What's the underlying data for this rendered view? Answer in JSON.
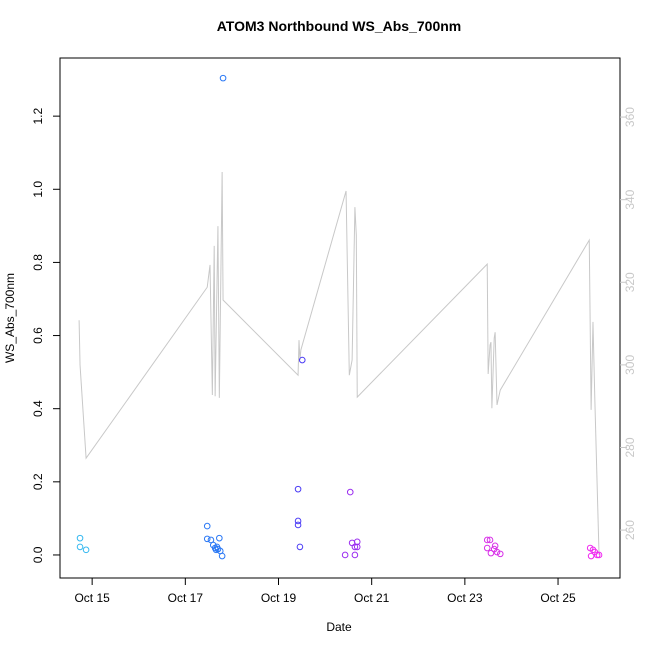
{
  "chart_data": {
    "type": "scatter",
    "title": "ATOM3 Northbound WS_Abs_700nm",
    "x_label": "Date",
    "y_label": "WS_Abs_700nm",
    "xlim": [
      14.31,
      26.33
    ],
    "ylim": [
      -0.063,
      1.359
    ],
    "y2lim": [
      248.4,
      374.3
    ],
    "xticks": [
      {
        "value": 15,
        "label": "Oct 15"
      },
      {
        "value": 17,
        "label": "Oct 17"
      },
      {
        "value": 19,
        "label": "Oct 19"
      },
      {
        "value": 21,
        "label": "Oct 21"
      },
      {
        "value": 23,
        "label": "Oct 23"
      },
      {
        "value": 25,
        "label": "Oct 25"
      }
    ],
    "yticks": [
      {
        "value": 0,
        "label": "0.0"
      },
      0.2,
      0.4,
      0.6,
      0.8,
      {
        "value": 1,
        "label": "1.0"
      },
      1.2
    ],
    "y2ticks": [
      260,
      280,
      300,
      320,
      340,
      360
    ],
    "series": [
      {
        "type": "line",
        "axis": "y2",
        "color": "#c8c8c8",
        "x": [
          14.72,
          14.74,
          14.87,
          17.47,
          17.53,
          17.58,
          17.62,
          17.64,
          17.7,
          17.73,
          17.79,
          17.81,
          19.42,
          19.44,
          19.46,
          19.48,
          20.45,
          20.52,
          20.58,
          20.64,
          20.67,
          20.69,
          23.48,
          23.5,
          23.54,
          23.56,
          23.58,
          23.63,
          23.65,
          23.69,
          23.76,
          25.67,
          25.71,
          25.75,
          25.79,
          25.88
        ],
        "values": [
          310.8,
          300.0,
          277.4,
          318.8,
          324.2,
          292.7,
          328.8,
          292.4,
          333.6,
          292.0,
          346.7,
          315.7,
          297.5,
          306.0,
          301.2,
          303.6,
          342.1,
          297.5,
          301.2,
          338.2,
          331.4,
          292.2,
          324.4,
          297.8,
          304.8,
          305.5,
          289.5,
          306.5,
          307.9,
          290.3,
          293.9,
          330.2,
          289.1,
          310.4,
          291.5,
          254.0
        ]
      },
      {
        "type": "scatter",
        "color": "#35b8f0",
        "x": [
          14.74,
          14.74,
          14.87
        ],
        "values": [
          0.046,
          0.022,
          0.014
        ]
      },
      {
        "type": "scatter",
        "color": "#2a78f5",
        "x": [
          17.47,
          17.47,
          17.55,
          17.6,
          17.64,
          17.66,
          17.68,
          17.7,
          17.73,
          17.75,
          17.79,
          17.81
        ],
        "values": [
          0.079,
          0.044,
          0.041,
          0.027,
          0.019,
          0.014,
          0.022,
          0.016,
          0.046,
          0.011,
          -0.003,
          1.304
        ]
      },
      {
        "type": "scatter",
        "color": "#4b3cf5",
        "x": [
          19.42,
          19.42,
          19.42,
          19.46,
          19.51
        ],
        "values": [
          0.18,
          0.093,
          0.082,
          0.022,
          0.533
        ]
      },
      {
        "type": "scatter",
        "color": "#9a2cf0",
        "x": [
          20.43,
          20.54,
          20.58,
          20.64,
          20.64,
          20.69,
          20.69
        ],
        "values": [
          0.0,
          0.172,
          0.033,
          0.0,
          0.022,
          0.022,
          0.036
        ]
      },
      {
        "type": "scatter",
        "color": "#d830e8",
        "x": [
          23.48,
          23.48,
          23.54,
          23.56,
          23.63,
          23.65,
          23.69,
          23.76
        ],
        "values": [
          0.041,
          0.019,
          0.041,
          0.005,
          0.016,
          0.025,
          0.008,
          0.003
        ]
      },
      {
        "type": "scatter",
        "color": "#f028f0",
        "x": [
          25.69,
          25.71,
          25.75,
          25.79,
          25.84,
          25.88
        ],
        "values": [
          0.019,
          -0.003,
          0.014,
          0.008,
          0.0,
          0.0
        ]
      }
    ]
  }
}
